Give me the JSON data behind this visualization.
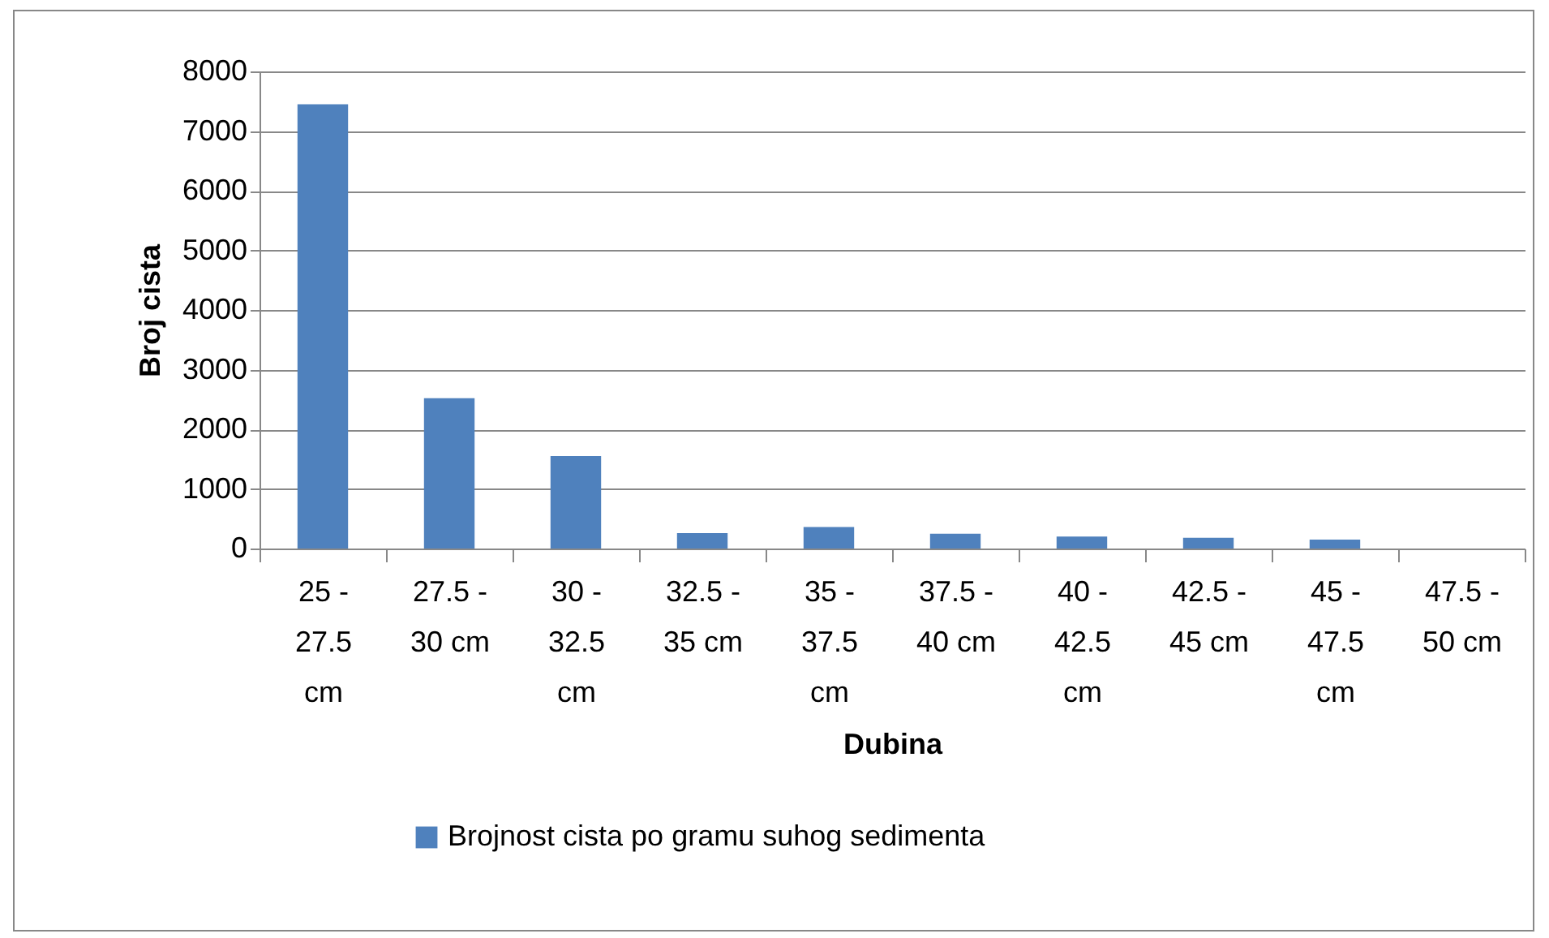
{
  "chart_data": {
    "type": "bar",
    "xlabel": "Dubina",
    "ylabel": "Broj cista",
    "categories": [
      "25 - 27.5 cm",
      "27.5 - 30 cm",
      "30 - 32.5 cm",
      "32.5 - 35 cm",
      "35 - 37.5 cm",
      "37.5 - 40 cm",
      "40 - 42.5 cm",
      "42.5 - 45 cm",
      "45 - 47.5 cm",
      "47.5 - 50 cm"
    ],
    "series": [
      {
        "name": "Brojnost cista po gramu suhog sedimenta",
        "color": "#4f81bd",
        "values": [
          7450,
          2520,
          1550,
          260,
          360,
          250,
          200,
          180,
          150,
          0
        ]
      }
    ],
    "ylim": [
      0,
      8000
    ],
    "yticks": [
      0,
      1000,
      2000,
      3000,
      4000,
      5000,
      6000,
      7000,
      8000
    ],
    "grid": "y",
    "legend": "bottom"
  }
}
